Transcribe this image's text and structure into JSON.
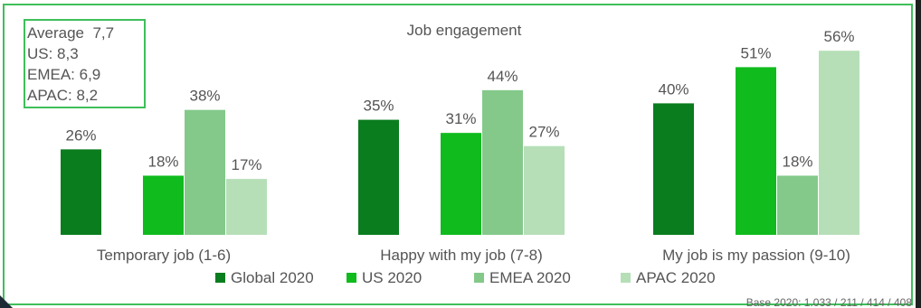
{
  "chart_data": {
    "type": "bar",
    "title": "Job engagement",
    "categories": [
      "Temporary job (1-6)",
      "Happy with my job (7-8)",
      "My job is my passion (9-10)"
    ],
    "series": [
      {
        "name": "Global 2020",
        "color": "#0a7d1f",
        "values": [
          26,
          35,
          40
        ],
        "labels": [
          "26%",
          "35%",
          "40%"
        ]
      },
      {
        "name": "US 2020",
        "color": "#10bb1e",
        "values": [
          18,
          31,
          51
        ],
        "labels": [
          "18%",
          "31%",
          "51%"
        ]
      },
      {
        "name": "EMEA 2020",
        "color": "#84c98a",
        "values": [
          38,
          44,
          18
        ],
        "labels": [
          "38%",
          "44%",
          "18%"
        ]
      },
      {
        "name": "APAC 2020",
        "color": "#b6dfb8",
        "values": [
          17,
          27,
          56
        ],
        "labels": [
          "17%",
          "27%",
          "56%"
        ]
      }
    ],
    "ylim": [
      0,
      60
    ],
    "grid": false,
    "legend_position": "bottom",
    "averages": [
      "Average  7,7",
      "US: 8,3",
      "EMEA: 6,9",
      "APAC: 8,2"
    ],
    "footnote": "Base 2020: 1.033 / 211 / 414 / 408"
  }
}
